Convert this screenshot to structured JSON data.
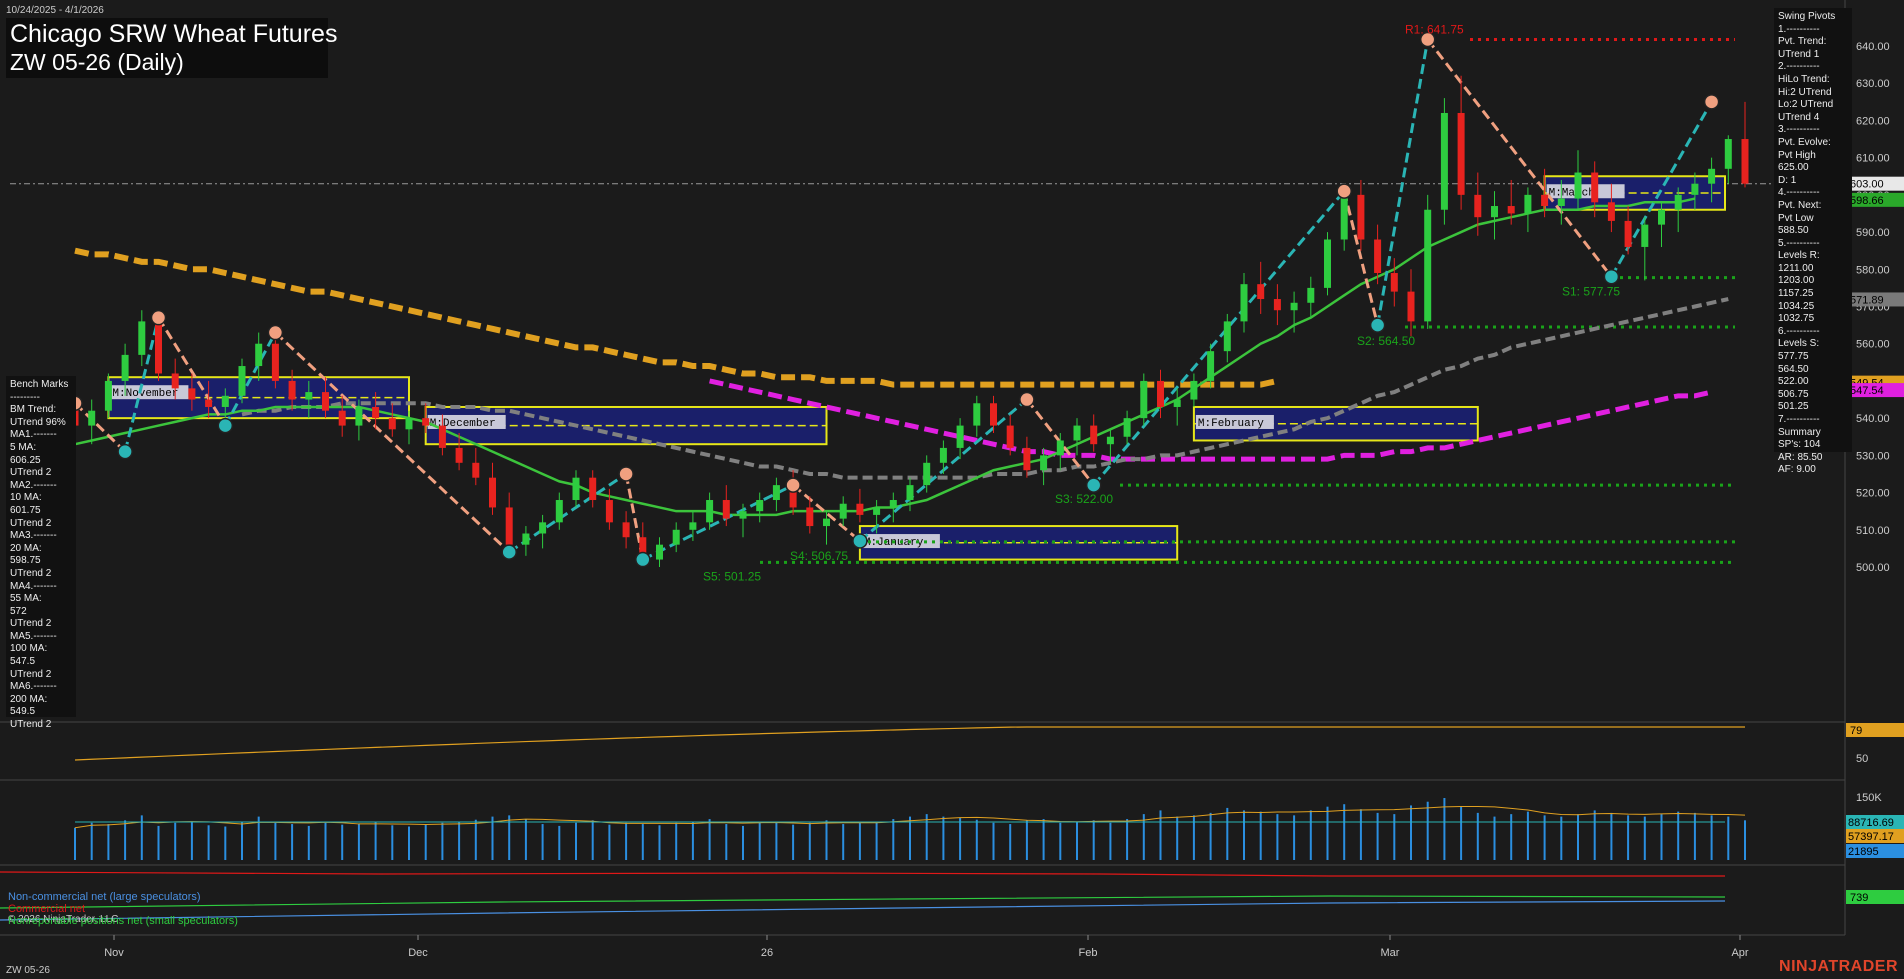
{
  "header": {
    "date_range": "10/24/2025 - 4/1/2026",
    "title_line1": "Chicago SRW Wheat Futures",
    "title_line2": "ZW 05-26 (Daily)"
  },
  "bench_marks": "Bench Marks\n---------\nBM Trend:\nUTrend 96%\nMA1.-------\n5 MA:\n606.25\nUTrend 2\nMA2.-------\n10 MA:\n601.75\nUTrend 2\nMA3.-------\n20 MA:\n598.75\nUTrend 2\nMA4.-------\n55 MA:\n572\nUTrend 2\nMA5.-------\n100 MA:\n547.5\nUTrend 2\nMA6.-------\n200 MA:\n549.5\nUTrend 2",
  "swing_pivots": "Swing Pivots\n1.----------\nPvt. Trend:\nUTrend 1\n2.----------\nHiLo Trend:\nHi:2 UTrend\nLo:2 UTrend\nUTrend 4\n3.----------\nPvt. Evolve:\nPvt High\n625.00\nD: 1\n4.----------\nPvt. Next:\nPvt Low\n588.50\n5.----------\nLevels R:\n1211.00\n1203.00\n1157.25\n1034.25\n1032.75\n6.----------\nLevels S:\n577.75\n564.50\n522.00\n506.75\n501.25\n7.----------\nSummary\nSP's: 104\nAR: 85.50\nAF: 9.00",
  "footer": {
    "symbol": "ZW 05-26",
    "copyright": "© 2026 NinjaTrader, LLC",
    "logo": "NINJATRADER"
  },
  "legend": {
    "noncommercial": "Non-commercial net (large speculators)",
    "commercial": "Commercial net",
    "nonreportable": "Nonreportable positions net (small speculators)"
  },
  "colors": {
    "background": "#1b1b1b",
    "up_candle": "#2ecc40",
    "down_candle": "#e8231f",
    "ma20": "#3cc43c",
    "ma55": "#808080",
    "ma100": "#e0a020",
    "ma200": "#e020e0",
    "pivot_line": "#f0a080",
    "pivot_up_line": "#2ab5b5",
    "support": "#1aa31a",
    "resistance": "#e01818",
    "volume": "#2b8fe0",
    "monthly_box": "#1a1f6a",
    "monthly_border": "#e6e619"
  },
  "chart_data": {
    "type": "candlestick",
    "y_axis": {
      "range": [
        494,
        646
      ],
      "ticks": [
        500,
        510,
        520,
        530,
        540,
        550,
        560,
        570,
        580,
        590,
        600,
        610,
        620,
        630,
        640
      ]
    },
    "x_axis": {
      "ticks": [
        "Nov",
        "Dec",
        "26",
        "Feb",
        "Mar",
        "Apr"
      ]
    },
    "price_labels": [
      {
        "label": "603.00",
        "value": 603.0,
        "color": "#e8e8e8",
        "text_color": "#000"
      },
      {
        "label": "598.66",
        "value": 598.66,
        "color": "#2aa82a",
        "text_color": "#000"
      },
      {
        "label": "571.89",
        "value": 571.89,
        "color": "#7a7a7a",
        "text_color": "#000"
      },
      {
        "label": "549.54",
        "value": 549.54,
        "color": "#e0a020",
        "text_color": "#000"
      },
      {
        "label": "547.54",
        "value": 547.54,
        "color": "#e020e0",
        "text_color": "#000"
      }
    ],
    "annotations": [
      {
        "text": "R1: 641.75",
        "value": 641.75,
        "color": "#e01818"
      },
      {
        "text": "S1: 577.75",
        "value": 577.75,
        "color": "#1aa31a"
      },
      {
        "text": "S2: 564.50",
        "value": 564.5,
        "color": "#1aa31a"
      },
      {
        "text": "S3: 522.00",
        "value": 522.0,
        "color": "#1aa31a"
      },
      {
        "text": "S4: 506.75",
        "value": 506.75,
        "color": "#1aa31a"
      },
      {
        "text": "S5: 501.25",
        "value": 501.25,
        "color": "#1aa31a"
      }
    ],
    "monthly_boxes": [
      {
        "label": "M:November",
        "high": 551,
        "low": 540
      },
      {
        "label": "M:December",
        "high": 543,
        "low": 533
      },
      {
        "label": "M:January",
        "high": 511,
        "low": 502
      },
      {
        "label": "M:February",
        "high": 543,
        "low": 534
      },
      {
        "label": "M:March",
        "high": 605,
        "low": 596
      }
    ],
    "candles": [
      [
        544,
        549,
        536,
        538
      ],
      [
        538,
        545,
        533,
        542
      ],
      [
        542,
        552,
        540,
        550
      ],
      [
        550,
        560,
        546,
        557
      ],
      [
        557,
        569,
        554,
        566
      ],
      [
        566,
        568,
        550,
        552
      ],
      [
        552,
        556,
        545,
        548
      ],
      [
        548,
        552,
        542,
        545
      ],
      [
        545,
        550,
        540,
        543
      ],
      [
        543,
        548,
        538,
        546
      ],
      [
        546,
        556,
        544,
        554
      ],
      [
        554,
        563,
        550,
        560
      ],
      [
        560,
        562,
        548,
        550
      ],
      [
        550,
        553,
        542,
        545
      ],
      [
        545,
        550,
        540,
        547
      ],
      [
        547,
        551,
        540,
        542
      ],
      [
        542,
        546,
        535,
        538
      ],
      [
        538,
        545,
        534,
        543
      ],
      [
        543,
        547,
        537,
        540
      ],
      [
        540,
        544,
        535,
        537
      ],
      [
        537,
        542,
        533,
        540
      ],
      [
        540,
        544,
        536,
        538
      ],
      [
        538,
        541,
        530,
        532
      ],
      [
        532,
        536,
        526,
        528
      ],
      [
        528,
        532,
        522,
        524
      ],
      [
        524,
        528,
        514,
        516
      ],
      [
        516,
        520,
        505,
        506
      ],
      [
        506,
        511,
        503,
        509
      ],
      [
        509,
        514,
        505,
        512
      ],
      [
        512,
        520,
        510,
        518
      ],
      [
        518,
        526,
        516,
        524
      ],
      [
        524,
        526,
        516,
        518
      ],
      [
        518,
        521,
        510,
        512
      ],
      [
        512,
        515,
        505,
        508
      ],
      [
        508,
        512,
        500,
        502
      ],
      [
        502,
        508,
        500,
        506
      ],
      [
        506,
        512,
        504,
        510
      ],
      [
        510,
        515,
        507,
        512
      ],
      [
        512,
        520,
        510,
        518
      ],
      [
        518,
        522,
        511,
        513
      ],
      [
        513,
        517,
        508,
        515
      ],
      [
        515,
        520,
        512,
        518
      ],
      [
        518,
        524,
        515,
        522
      ],
      [
        522,
        526,
        514,
        516
      ],
      [
        516,
        519,
        509,
        511
      ],
      [
        511,
        515,
        506,
        513
      ],
      [
        513,
        519,
        511,
        517
      ],
      [
        517,
        521,
        512,
        514
      ],
      [
        514,
        518,
        509,
        516
      ],
      [
        516,
        520,
        512,
        518
      ],
      [
        518,
        524,
        515,
        522
      ],
      [
        522,
        530,
        520,
        528
      ],
      [
        528,
        534,
        525,
        532
      ],
      [
        532,
        540,
        529,
        538
      ],
      [
        538,
        546,
        535,
        544
      ],
      [
        544,
        546,
        536,
        538
      ],
      [
        538,
        541,
        530,
        532
      ],
      [
        532,
        535,
        524,
        526
      ],
      [
        526,
        532,
        522,
        530
      ],
      [
        530,
        536,
        526,
        534
      ],
      [
        534,
        540,
        530,
        538
      ],
      [
        538,
        541,
        531,
        533
      ],
      [
        533,
        537,
        528,
        535
      ],
      [
        535,
        542,
        533,
        540
      ],
      [
        540,
        552,
        538,
        550
      ],
      [
        550,
        553,
        540,
        543
      ],
      [
        543,
        548,
        538,
        545
      ],
      [
        545,
        552,
        543,
        550
      ],
      [
        550,
        560,
        548,
        558
      ],
      [
        558,
        568,
        555,
        566
      ],
      [
        566,
        579,
        563,
        576
      ],
      [
        576,
        582,
        568,
        572
      ],
      [
        572,
        576,
        565,
        569
      ],
      [
        569,
        574,
        563,
        571
      ],
      [
        571,
        578,
        567,
        575
      ],
      [
        575,
        590,
        573,
        588
      ],
      [
        588,
        602,
        585,
        600
      ],
      [
        600,
        604,
        585,
        588
      ],
      [
        588,
        592,
        576,
        579
      ],
      [
        579,
        583,
        570,
        574
      ],
      [
        574,
        580,
        562,
        566
      ],
      [
        566,
        600,
        564,
        596
      ],
      [
        596,
        626,
        592,
        622
      ],
      [
        622,
        632,
        596,
        600
      ],
      [
        600,
        606,
        589,
        594
      ],
      [
        594,
        601,
        588,
        597
      ],
      [
        597,
        604,
        592,
        595
      ],
      [
        595,
        602,
        590,
        600
      ],
      [
        600,
        607,
        594,
        597
      ],
      [
        597,
        604,
        592,
        599
      ],
      [
        599,
        612,
        596,
        606
      ],
      [
        606,
        609,
        594,
        598
      ],
      [
        598,
        603,
        590,
        593
      ],
      [
        593,
        597,
        584,
        586
      ],
      [
        586,
        594,
        577,
        592
      ],
      [
        592,
        598,
        586,
        596
      ],
      [
        596,
        602,
        590,
        600
      ],
      [
        600,
        606,
        596,
        603
      ],
      [
        603,
        610,
        598,
        607
      ],
      [
        607,
        616,
        603,
        615
      ],
      [
        615,
        625,
        602,
        603
      ]
    ],
    "ma20": [
      533,
      534,
      535,
      536,
      537,
      538,
      539,
      540,
      541,
      541,
      542,
      542,
      543,
      543,
      543,
      543,
      543,
      543,
      542,
      541,
      540,
      539,
      537,
      535,
      533,
      531,
      529,
      527,
      525,
      523,
      522,
      520,
      519,
      518,
      517,
      516,
      515,
      515,
      515,
      514,
      514,
      514,
      514,
      515,
      515,
      515,
      515,
      515,
      516,
      516,
      517,
      518,
      520,
      522,
      524,
      526,
      527,
      528,
      529,
      531,
      533,
      535,
      537,
      539,
      541,
      543,
      545,
      548,
      551,
      554,
      557,
      560,
      562,
      565,
      567,
      570,
      573,
      576,
      578,
      580,
      583,
      586,
      588,
      590,
      592,
      593,
      594,
      595,
      596,
      596,
      596,
      597,
      597,
      597,
      598,
      598,
      598,
      599
    ],
    "ma55": [
      541,
      542,
      542,
      543,
      543,
      543,
      544,
      544,
      544,
      544,
      544,
      544,
      543,
      543,
      543,
      542,
      542,
      541,
      540,
      539,
      538,
      537,
      536,
      535,
      534,
      533,
      532,
      531,
      530,
      529,
      528,
      527,
      527,
      526,
      525,
      525,
      524,
      524,
      524,
      524,
      524,
      524,
      524,
      524,
      524,
      525,
      525,
      525,
      526,
      526,
      527,
      527,
      528,
      529,
      529,
      530,
      530,
      531,
      532,
      533,
      534,
      535,
      536,
      537,
      539,
      540,
      542,
      544,
      546,
      547,
      549,
      551,
      553,
      554,
      556,
      557,
      559,
      560,
      561,
      562,
      563,
      564,
      565,
      566,
      567,
      568,
      569,
      570,
      571,
      572
    ],
    "ma100": [
      585,
      584,
      584,
      583,
      582,
      582,
      581,
      580,
      580,
      579,
      578,
      577,
      576,
      575,
      574,
      574,
      573,
      572,
      571,
      570,
      569,
      568,
      567,
      566,
      565,
      564,
      563,
      562,
      561,
      560,
      559,
      559,
      558,
      557,
      556,
      555,
      555,
      554,
      554,
      553,
      552,
      552,
      551,
      551,
      551,
      550,
      550,
      550,
      550,
      549,
      549,
      549,
      549,
      549,
      549,
      549,
      549,
      549,
      549,
      549,
      549,
      549,
      549,
      549,
      549,
      549,
      549,
      549,
      549,
      549,
      549,
      549,
      550
    ],
    "ma200": [
      550,
      549,
      548,
      547,
      546,
      545,
      544,
      543,
      542,
      541,
      540,
      539,
      538,
      537,
      536,
      535,
      534,
      533,
      532,
      531,
      531,
      530,
      530,
      530,
      529,
      529,
      529,
      529,
      529,
      529,
      529,
      529,
      529,
      529,
      529,
      529,
      529,
      529,
      530,
      530,
      530,
      531,
      531,
      532,
      532,
      533,
      534,
      535,
      536,
      537,
      538,
      539,
      540,
      541,
      542,
      543,
      544,
      545,
      546,
      546,
      547
    ],
    "pivots": [
      [
        0,
        544
      ],
      [
        3,
        531
      ],
      [
        5,
        567
      ],
      [
        9,
        538
      ],
      [
        12,
        563
      ],
      [
        26,
        504
      ],
      [
        33,
        525
      ],
      [
        34,
        502
      ],
      [
        43,
        522
      ],
      [
        47,
        507
      ],
      [
        57,
        545
      ],
      [
        61,
        522
      ],
      [
        76,
        601
      ],
      [
        78,
        565
      ],
      [
        81,
        641.75
      ],
      [
        92,
        578
      ],
      [
        98,
        625
      ]
    ],
    "oscillator_label": "79",
    "oscillator_ticks": [
      "50"
    ],
    "volume_labels": [
      "150K",
      "88716.69",
      "57397.17",
      "21895"
    ],
    "cot_label": "739",
    "volume": [
      52,
      60,
      58,
      64,
      72,
      55,
      60,
      62,
      56,
      54,
      62,
      70,
      60,
      58,
      55,
      60,
      57,
      59,
      61,
      56,
      54,
      57,
      60,
      62,
      65,
      70,
      72,
      66,
      58,
      55,
      60,
      64,
      57,
      60,
      58,
      56,
      60,
      62,
      66,
      58,
      55,
      60,
      62,
      57,
      60,
      64,
      58,
      60,
      62,
      66,
      70,
      74,
      70,
      68,
      65,
      60,
      58,
      64,
      66,
      60,
      62,
      64,
      60,
      66,
      74,
      80,
      70,
      72,
      76,
      84,
      80,
      78,
      74,
      72,
      80,
      86,
      90,
      82,
      76,
      74,
      88,
      94,
      100,
      86,
      76,
      70,
      74,
      78,
      72,
      70,
      74,
      80,
      76,
      72,
      70,
      74,
      78,
      76,
      72,
      70,
      64
    ]
  }
}
